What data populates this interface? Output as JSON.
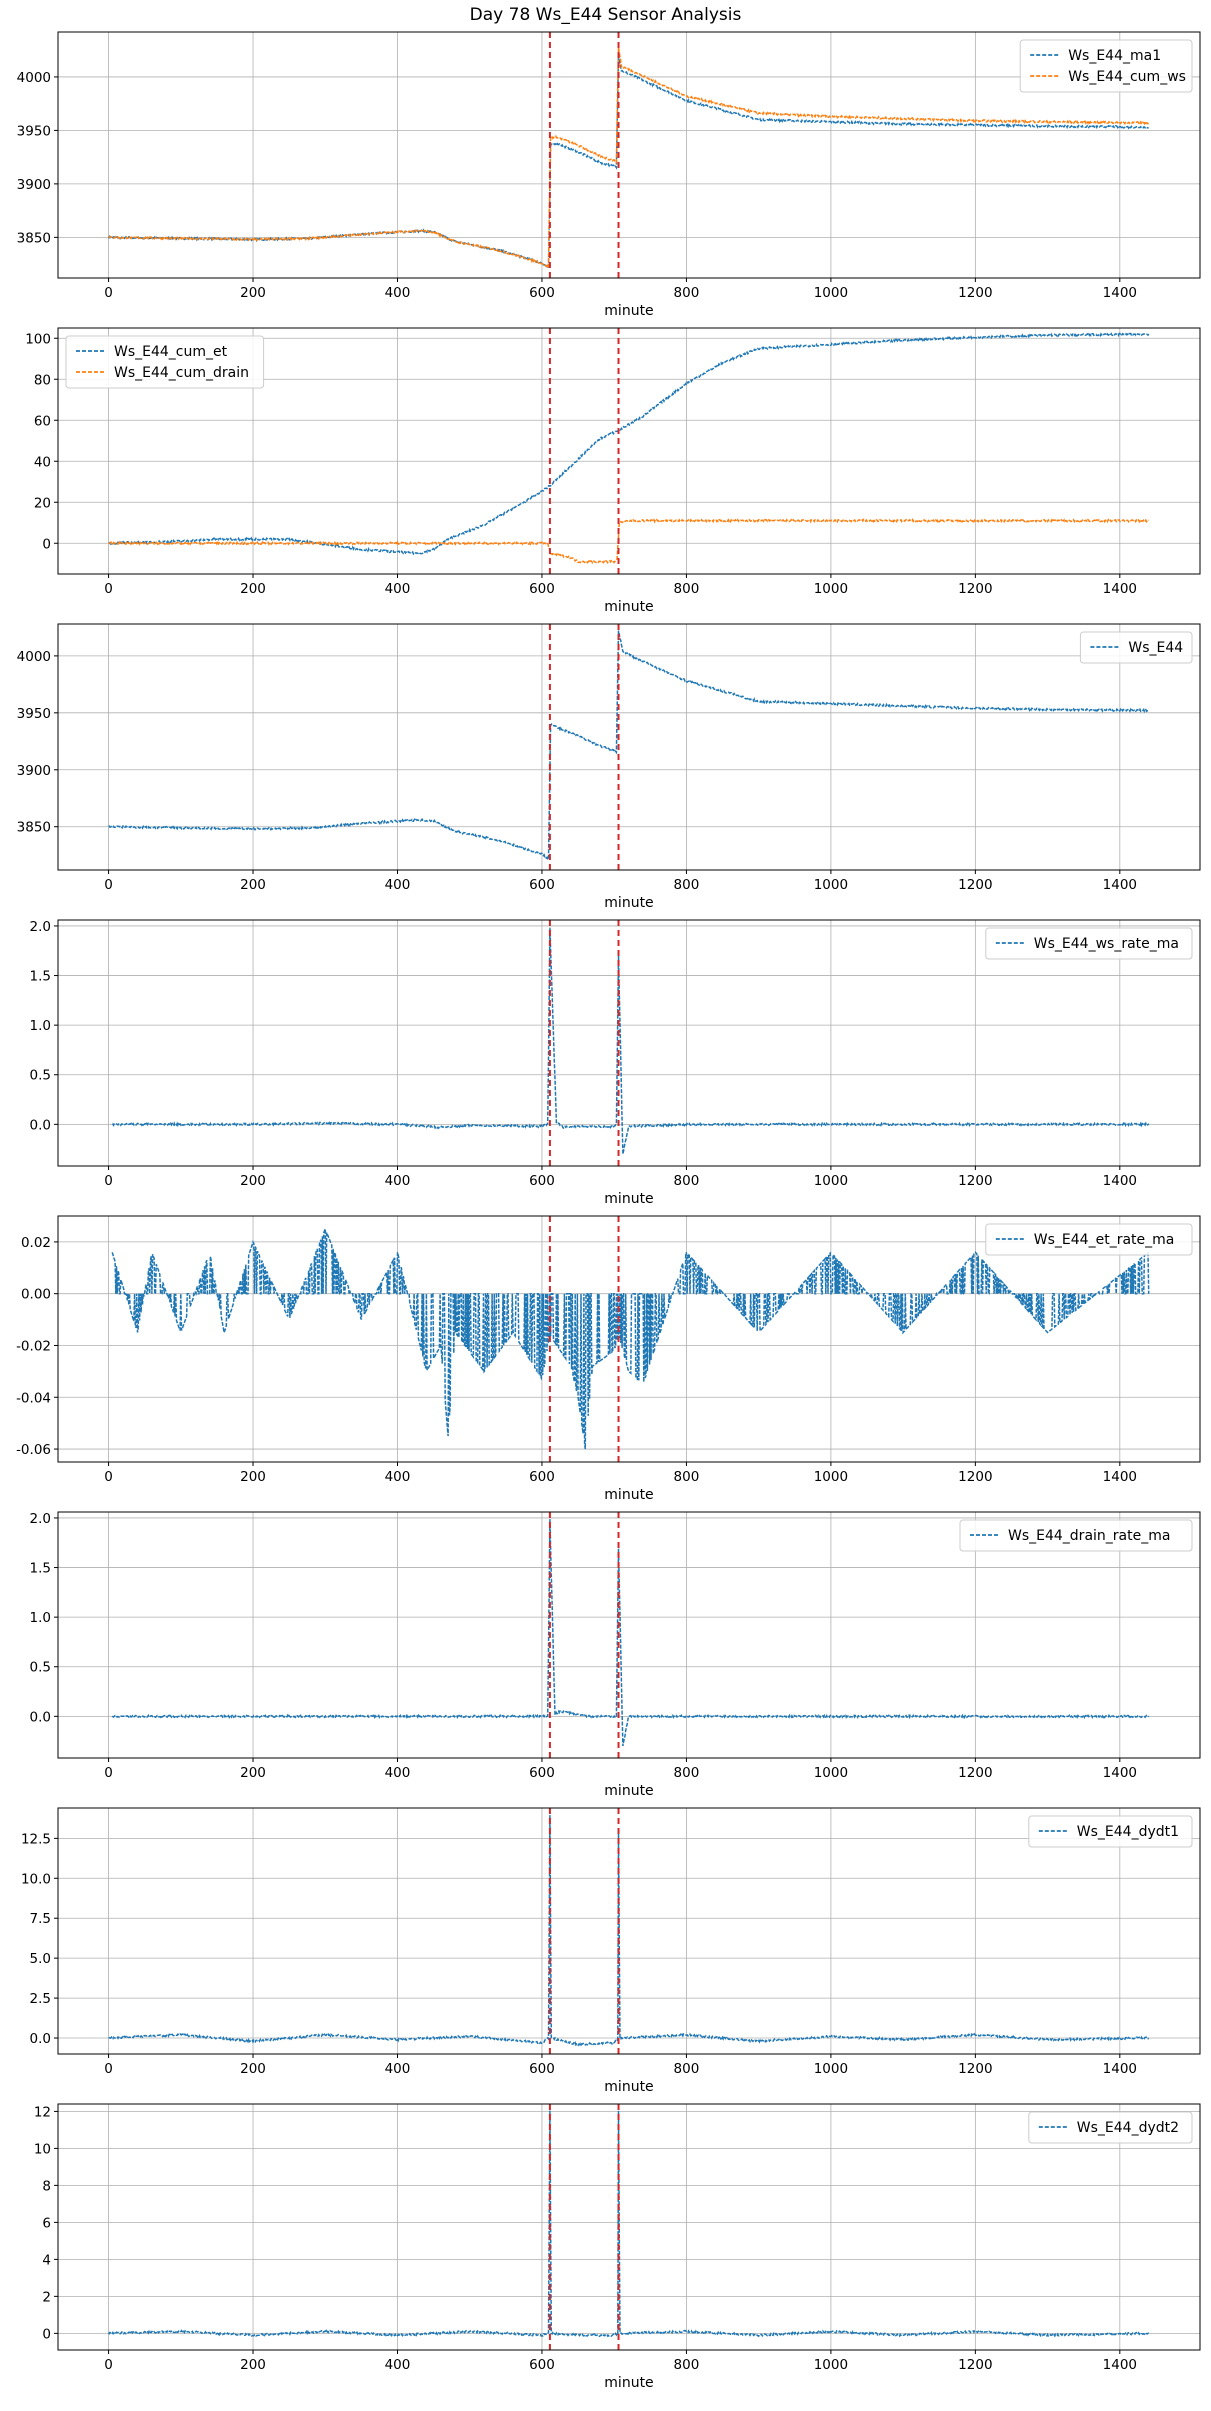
{
  "title": "Day 78 Ws_E44 Sensor Analysis",
  "colors": {
    "blue": "#1f77b4",
    "orange": "#ff7f0e",
    "vline": "#d62728",
    "grid": "#b0b0b0"
  },
  "chart_data": [
    {
      "type": "line",
      "xlabel": "minute",
      "xlim": [
        -70,
        1511
      ],
      "ylim": [
        3812,
        4042
      ],
      "xticks": [
        0,
        200,
        400,
        600,
        800,
        1000,
        1200,
        1400
      ],
      "yticks": [
        3850,
        3900,
        3950,
        4000
      ],
      "ytick_labels": [
        "3850",
        "3900",
        "3950",
        "4000"
      ],
      "vlines": [
        611,
        706
      ],
      "legend": "top-right",
      "series": [
        {
          "name": "Ws_E44_ma1",
          "color": "#1f77b4",
          "x": [
            0,
            100,
            200,
            280,
            350,
            430,
            450,
            480,
            540,
            600,
            609,
            612,
            620,
            650,
            680,
            703,
            706,
            710,
            730,
            800,
            900,
            1000,
            1100,
            1200,
            1300,
            1440
          ],
          "y": [
            3850,
            3849,
            3848,
            3849,
            3853,
            3856,
            3855,
            3846,
            3838,
            3826,
            3822,
            3936,
            3938,
            3930,
            3920,
            3916,
            4022,
            4006,
            4000,
            3978,
            3960,
            3958,
            3956,
            3955,
            3954,
            3953
          ]
        },
        {
          "name": "Ws_E44_cum_ws",
          "color": "#ff7f0e",
          "x": [
            0,
            100,
            200,
            280,
            350,
            430,
            450,
            480,
            540,
            600,
            609,
            612,
            620,
            650,
            680,
            703,
            706,
            710,
            730,
            800,
            900,
            1000,
            1100,
            1200,
            1300,
            1440
          ],
          "y": [
            3850,
            3849,
            3848,
            3849,
            3853,
            3856,
            3855,
            3846,
            3838,
            3826,
            3822,
            3943,
            3944,
            3936,
            3926,
            3921,
            4028,
            4010,
            4004,
            3982,
            3966,
            3963,
            3961,
            3959,
            3958,
            3957
          ]
        }
      ]
    },
    {
      "type": "line",
      "xlabel": "minute",
      "xlim": [
        -70,
        1511
      ],
      "ylim": [
        -15,
        105
      ],
      "xticks": [
        0,
        200,
        400,
        600,
        800,
        1000,
        1200,
        1400
      ],
      "yticks": [
        0,
        20,
        40,
        60,
        80,
        100
      ],
      "ytick_labels": [
        "0",
        "20",
        "40",
        "60",
        "80",
        "100"
      ],
      "vlines": [
        611,
        706
      ],
      "legend": "top-left",
      "series": [
        {
          "name": "Ws_E44_cum_et",
          "color": "#1f77b4",
          "x": [
            0,
            100,
            150,
            250,
            290,
            350,
            430,
            450,
            470,
            520,
            580,
            611,
            650,
            680,
            706,
            740,
            800,
            850,
            900,
            950,
            1000,
            1100,
            1200,
            1300,
            1440
          ],
          "y": [
            0,
            1,
            2,
            2,
            0,
            -3,
            -5,
            -3,
            2,
            9,
            21,
            28,
            41,
            51,
            55,
            62,
            78,
            88,
            95,
            96,
            97,
            99,
            100.5,
            101.5,
            102
          ]
        },
        {
          "name": "Ws_E44_cum_drain",
          "color": "#ff7f0e",
          "x": [
            0,
            200,
            400,
            608,
            612,
            640,
            650,
            700,
            704,
            707,
            720,
            900,
            1200,
            1440
          ],
          "y": [
            0,
            0,
            0,
            0,
            -5,
            -7,
            -9,
            -9,
            -8,
            10,
            11,
            11,
            11,
            11
          ]
        }
      ]
    },
    {
      "type": "line",
      "xlabel": "minute",
      "xlim": [
        -70,
        1511
      ],
      "ylim": [
        3812,
        4028
      ],
      "xticks": [
        0,
        200,
        400,
        600,
        800,
        1000,
        1200,
        1400
      ],
      "yticks": [
        3850,
        3900,
        3950,
        4000
      ],
      "ytick_labels": [
        "3850",
        "3900",
        "3950",
        "4000"
      ],
      "vlines": [
        611,
        706
      ],
      "legend": "top-right",
      "series": [
        {
          "name": "Ws_E44",
          "color": "#1f77b4",
          "x": [
            0,
            100,
            200,
            280,
            350,
            430,
            450,
            480,
            540,
            600,
            609,
            612,
            625,
            650,
            680,
            703,
            706,
            712,
            730,
            800,
            900,
            1000,
            1100,
            1200,
            1300,
            1440
          ],
          "y": [
            3850,
            3849,
            3848,
            3849,
            3853,
            3856,
            3855,
            3846,
            3838,
            3826,
            3822,
            3940,
            3936,
            3930,
            3921,
            3916,
            4022,
            4004,
            3998,
            3978,
            3960,
            3958,
            3956,
            3954,
            3953,
            3952
          ]
        }
      ]
    },
    {
      "type": "line",
      "xlabel": "minute",
      "xlim": [
        -70,
        1511
      ],
      "ylim": [
        -0.42,
        2.06
      ],
      "xticks": [
        0,
        200,
        400,
        600,
        800,
        1000,
        1200,
        1400
      ],
      "yticks": [
        0,
        0.5,
        1,
        1.5,
        2
      ],
      "ytick_labels": [
        "0.0",
        "0.5",
        "1.0",
        "1.5",
        "2.0"
      ],
      "vlines": [
        611,
        706
      ],
      "legend": "top-right",
      "series": [
        {
          "name": "Ws_E44_ws_rate_ma",
          "color": "#1f77b4",
          "x": [
            5,
            100,
            200,
            300,
            400,
            460,
            500,
            600,
            608,
            611,
            620,
            630,
            660,
            700,
            703,
            706,
            712,
            720,
            760,
            800,
            1000,
            1200,
            1440
          ],
          "y": [
            0,
            0,
            0,
            0.01,
            0,
            -0.03,
            -0.01,
            -0.02,
            0,
            1.98,
            0.02,
            -0.03,
            -0.02,
            -0.02,
            0,
            1.7,
            -0.3,
            -0.02,
            -0.01,
            0,
            0,
            0,
            0
          ]
        }
      ]
    },
    {
      "type": "line",
      "xlabel": "minute",
      "xlim": [
        -70,
        1511
      ],
      "ylim": [
        -0.065,
        0.03
      ],
      "xticks": [
        0,
        200,
        400,
        600,
        800,
        1000,
        1200,
        1400
      ],
      "yticks": [
        -0.06,
        -0.04,
        -0.02,
        0,
        0.02
      ],
      "ytick_labels": [
        "-0.06",
        "-0.04",
        "-0.02",
        "0.00",
        "0.02"
      ],
      "vlines": [
        611,
        706
      ],
      "legend": "top-right",
      "series": [
        {
          "name": "Ws_E44_et_rate_ma",
          "color": "#1f77b4",
          "x": [
            5,
            40,
            60,
            100,
            140,
            160,
            200,
            250,
            300,
            350,
            400,
            440,
            460,
            470,
            480,
            520,
            560,
            600,
            611,
            640,
            650,
            660,
            670,
            700,
            706,
            720,
            740,
            760,
            800,
            900,
            1000,
            1100,
            1200,
            1300,
            1440
          ],
          "y": [
            0.016,
            -0.015,
            0.016,
            -0.015,
            0.016,
            -0.015,
            0.02,
            -0.01,
            0.025,
            -0.01,
            0.016,
            -0.03,
            -0.02,
            -0.055,
            -0.015,
            -0.03,
            -0.015,
            -0.033,
            -0.016,
            -0.028,
            -0.04,
            -0.06,
            -0.028,
            -0.022,
            -0.016,
            -0.03,
            -0.035,
            -0.018,
            0.016,
            -0.015,
            0.016,
            -0.015,
            0.016,
            -0.015,
            0.016
          ]
        }
      ]
    },
    {
      "type": "line",
      "xlabel": "minute",
      "xlim": [
        -70,
        1511
      ],
      "ylim": [
        -0.42,
        2.06
      ],
      "xticks": [
        0,
        200,
        400,
        600,
        800,
        1000,
        1200,
        1400
      ],
      "yticks": [
        0,
        0.5,
        1,
        1.5,
        2
      ],
      "ytick_labels": [
        "0.0",
        "0.5",
        "1.0",
        "1.5",
        "2.0"
      ],
      "vlines": [
        611,
        706
      ],
      "legend": "top-right",
      "series": [
        {
          "name": "Ws_E44_drain_rate_ma",
          "color": "#1f77b4",
          "x": [
            5,
            200,
            400,
            608,
            611,
            618,
            625,
            650,
            660,
            700,
            703,
            706,
            712,
            720,
            800,
            1000,
            1200,
            1440
          ],
          "y": [
            0,
            0,
            0,
            0,
            1.98,
            0.02,
            0.05,
            0.02,
            0,
            0,
            0,
            1.7,
            -0.3,
            0,
            0,
            0,
            0,
            0
          ]
        }
      ]
    },
    {
      "type": "line",
      "xlabel": "minute",
      "xlim": [
        -70,
        1511
      ],
      "ylim": [
        -1.0,
        14.4
      ],
      "xticks": [
        0,
        200,
        400,
        600,
        800,
        1000,
        1200,
        1400
      ],
      "yticks": [
        0,
        2.5,
        5,
        7.5,
        10,
        12.5
      ],
      "ytick_labels": [
        "0.0",
        "2.5",
        "5.0",
        "7.5",
        "10.0",
        "12.5"
      ],
      "vlines": [
        611,
        706
      ],
      "legend": "top-right",
      "series": [
        {
          "name": "Ws_E44_dydt1",
          "color": "#1f77b4",
          "x": [
            0,
            100,
            200,
            300,
            400,
            500,
            600,
            609,
            611,
            613,
            650,
            700,
            705,
            706,
            708,
            800,
            900,
            1000,
            1100,
            1200,
            1300,
            1440
          ],
          "y": [
            0,
            0.2,
            -0.2,
            0.2,
            -0.1,
            0.1,
            -0.3,
            0,
            14,
            0,
            -0.4,
            -0.3,
            0,
            13,
            0,
            0.2,
            -0.2,
            0.1,
            -0.1,
            0.2,
            -0.1,
            0
          ]
        }
      ]
    },
    {
      "type": "line",
      "xlabel": "minute",
      "xlim": [
        -70,
        1511
      ],
      "ylim": [
        -0.9,
        12.4
      ],
      "xticks": [
        0,
        200,
        400,
        600,
        800,
        1000,
        1200,
        1400
      ],
      "yticks": [
        0,
        2,
        4,
        6,
        8,
        10,
        12
      ],
      "ytick_labels": [
        "0",
        "2",
        "4",
        "6",
        "8",
        "10",
        "12"
      ],
      "vlines": [
        611,
        706
      ],
      "legend": "top-right",
      "series": [
        {
          "name": "Ws_E44_dydt2",
          "color": "#1f77b4",
          "x": [
            0,
            100,
            200,
            300,
            400,
            500,
            600,
            609,
            611,
            613,
            650,
            700,
            705,
            706,
            708,
            800,
            900,
            1000,
            1100,
            1200,
            1300,
            1440
          ],
          "y": [
            0,
            0.1,
            -0.1,
            0.1,
            -0.1,
            0.1,
            -0.1,
            0,
            12,
            0,
            -0.1,
            -0.1,
            0,
            12,
            0,
            0.1,
            -0.1,
            0.1,
            -0.1,
            0.1,
            -0.1,
            0
          ]
        }
      ]
    }
  ]
}
